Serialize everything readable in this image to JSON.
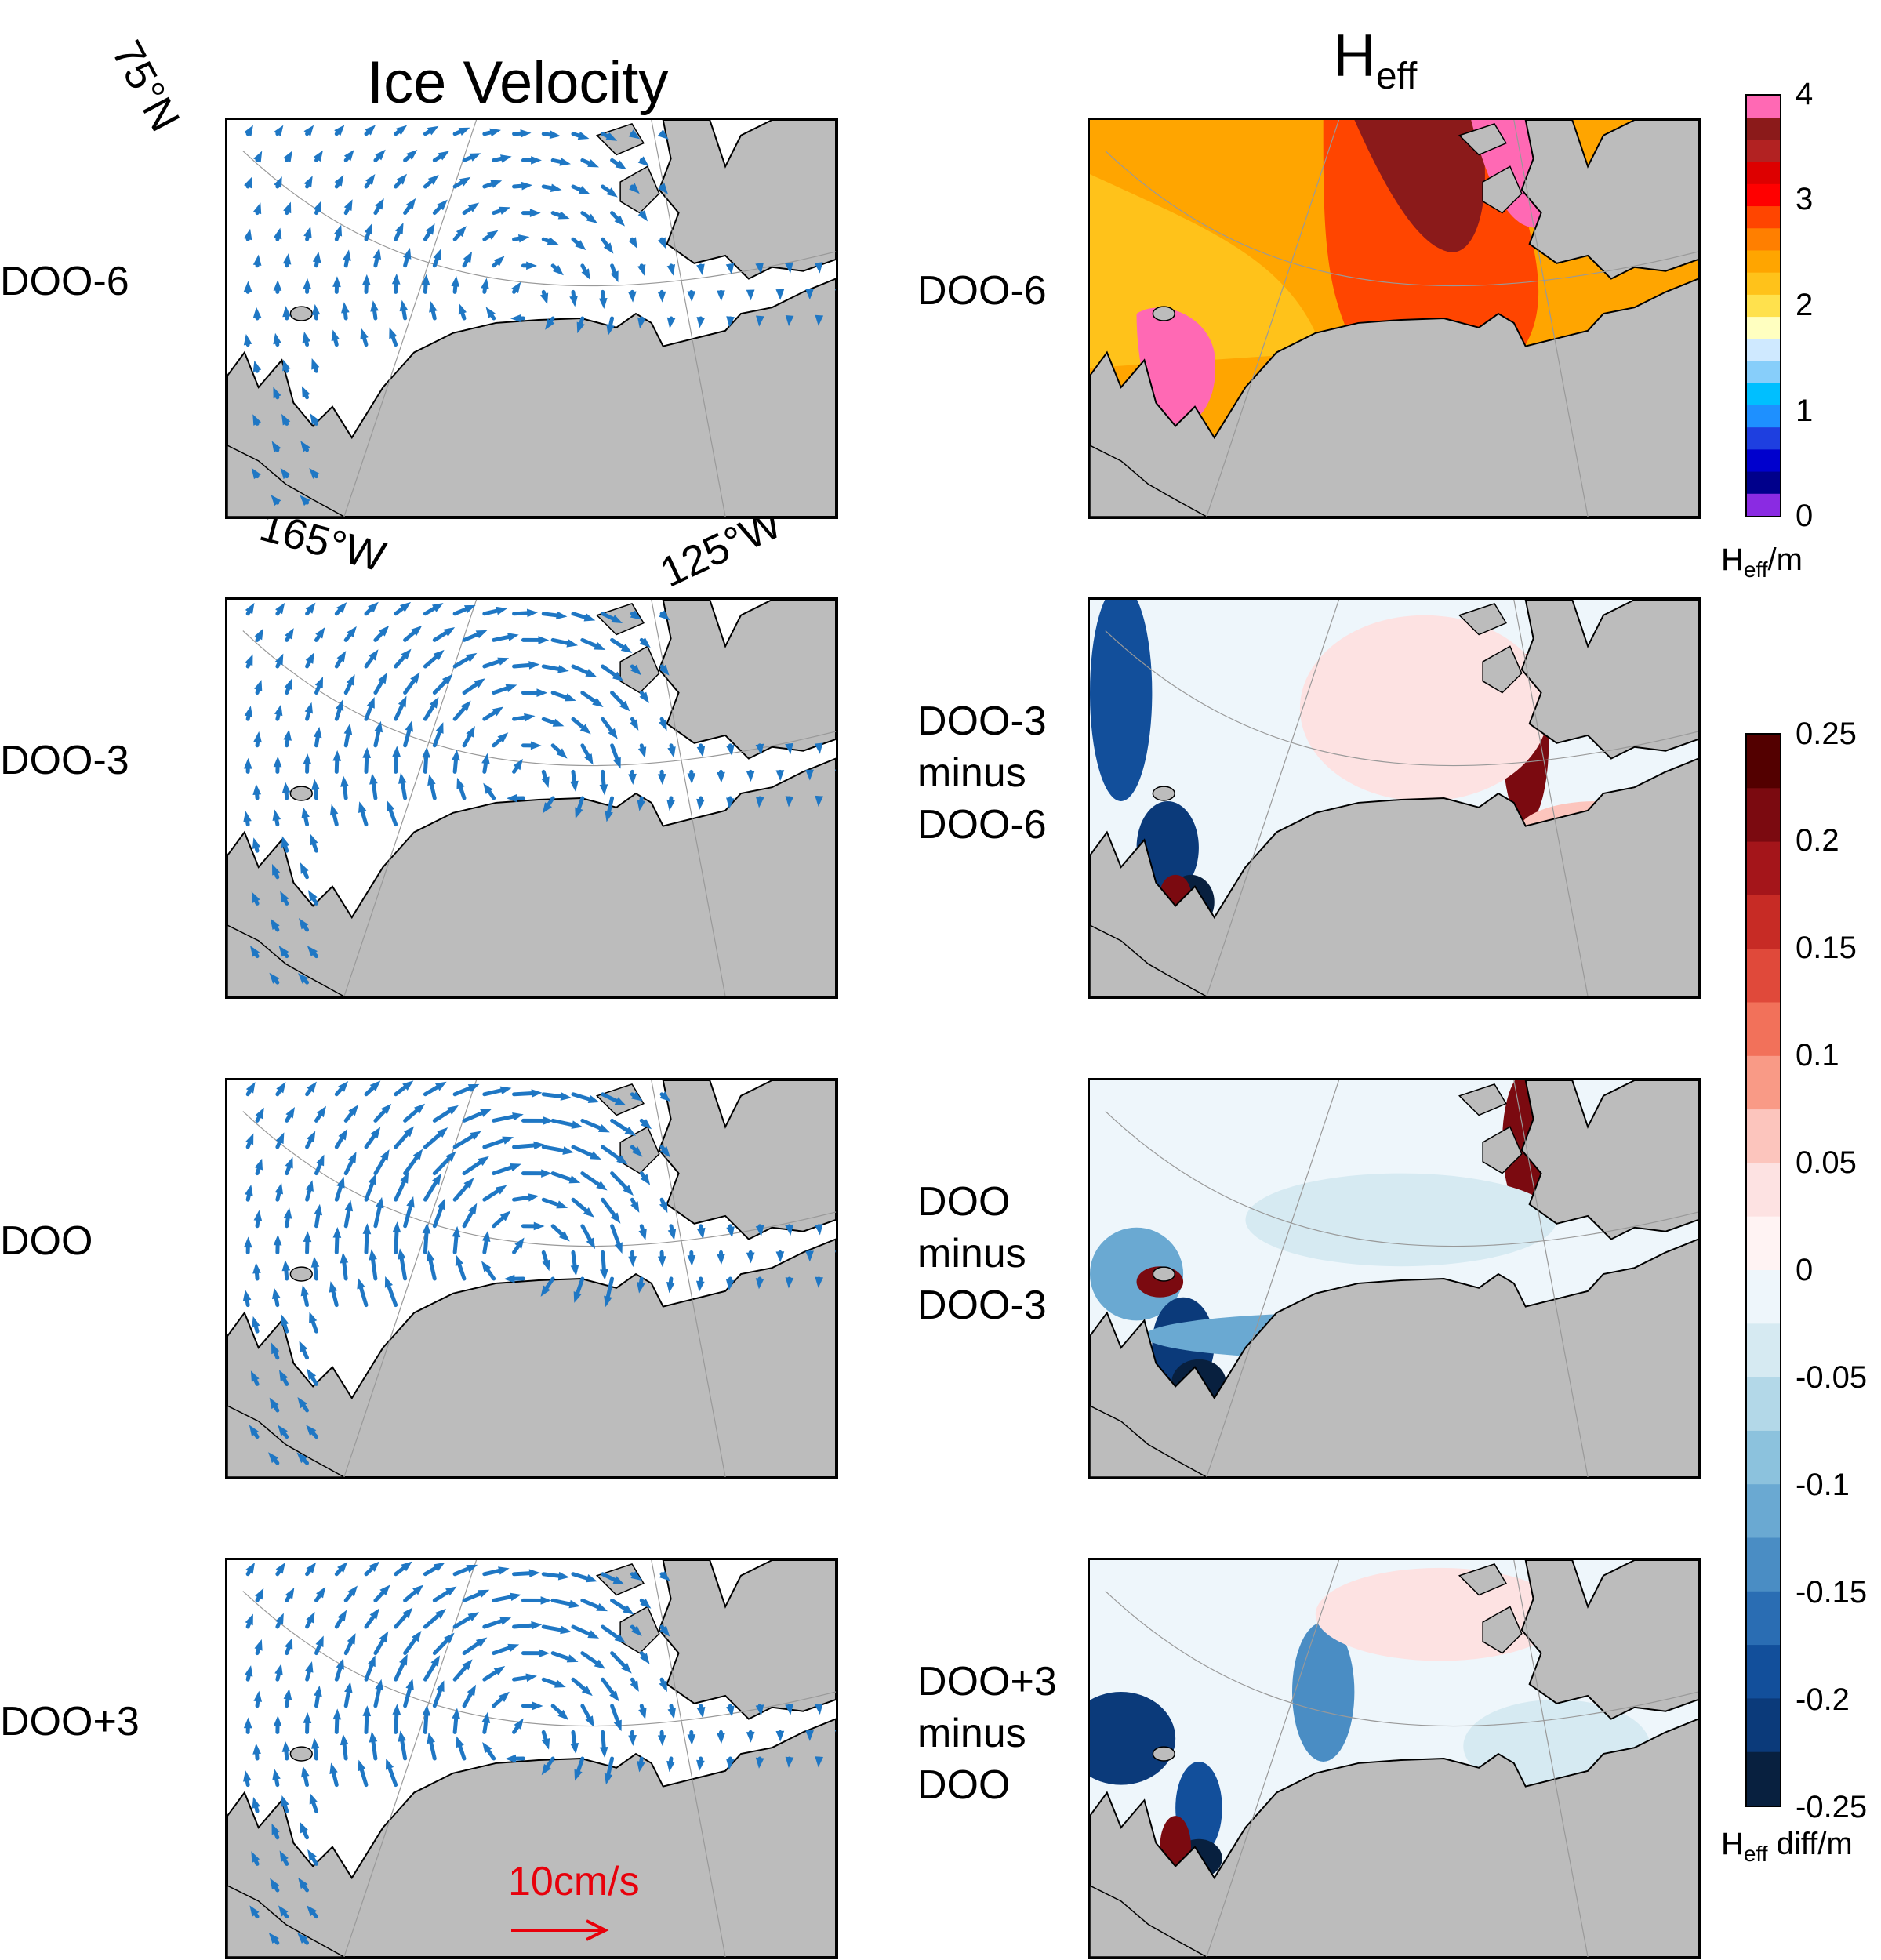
{
  "titles": {
    "left": "Ice Velocity",
    "right_main": "H",
    "right_sub": "eff"
  },
  "axis_labels": {
    "lat": "75°N",
    "lon_left": "165°W",
    "lon_right": "125°W"
  },
  "rows": [
    {
      "left_label": "DOO-6",
      "right_label": [
        "DOO-6"
      ]
    },
    {
      "left_label": "DOO-3",
      "right_label": [
        "DOO-3",
        "minus",
        "DOO-6"
      ]
    },
    {
      "left_label": "DOO",
      "right_label": [
        "DOO",
        "minus",
        "DOO-3"
      ]
    },
    {
      "left_label": "DOO+3",
      "right_label": [
        "DOO+3",
        "minus",
        "DOO"
      ]
    }
  ],
  "scale_arrow": {
    "label": "10cm/s",
    "color": "#e8000b"
  },
  "colorbar_heff": {
    "ticks": [
      "4",
      "3",
      "2",
      "1",
      "0"
    ],
    "unit_main": "H",
    "unit_sub": "eff",
    "unit_tail": "/m",
    "range": [
      0,
      4
    ]
  },
  "colorbar_diff": {
    "ticks": [
      "0.25",
      "0.2",
      "0.15",
      "0.1",
      "0.05",
      "0",
      "-0.05",
      "-0.1",
      "-0.15",
      "-0.2",
      "-0.25"
    ],
    "unit_main": "H",
    "unit_sub": "eff",
    "unit_tail": " diff/m",
    "range": [
      -0.25,
      0.25
    ]
  },
  "colors": {
    "land": "#bcbcbc",
    "vector": "#1f77c4",
    "heff_scale": [
      "#8a2be2",
      "#00008b",
      "#0000cd",
      "#1e3fe0",
      "#1e90ff",
      "#00bfff",
      "#87cefa",
      "#cfe9ff",
      "#ffffc0",
      "#ffe14d",
      "#ffc21a",
      "#ffa500",
      "#ff7f00",
      "#ff4500",
      "#ff0000",
      "#dd0000",
      "#b22222",
      "#8b1a1a",
      "#ff69b4"
    ],
    "diff_scale": [
      "#08203f",
      "#0b3a7a",
      "#124f9b",
      "#2a6db3",
      "#4a8dc4",
      "#6aa9d2",
      "#8cc2dd",
      "#b3d8e8",
      "#d6eaf2",
      "#eef6fb",
      "#fff3f3",
      "#fde2e2",
      "#fcc5bd",
      "#f99a86",
      "#f2715a",
      "#e0493a",
      "#c72b25",
      "#a4151a",
      "#7b0a10",
      "#530000"
    ]
  }
}
